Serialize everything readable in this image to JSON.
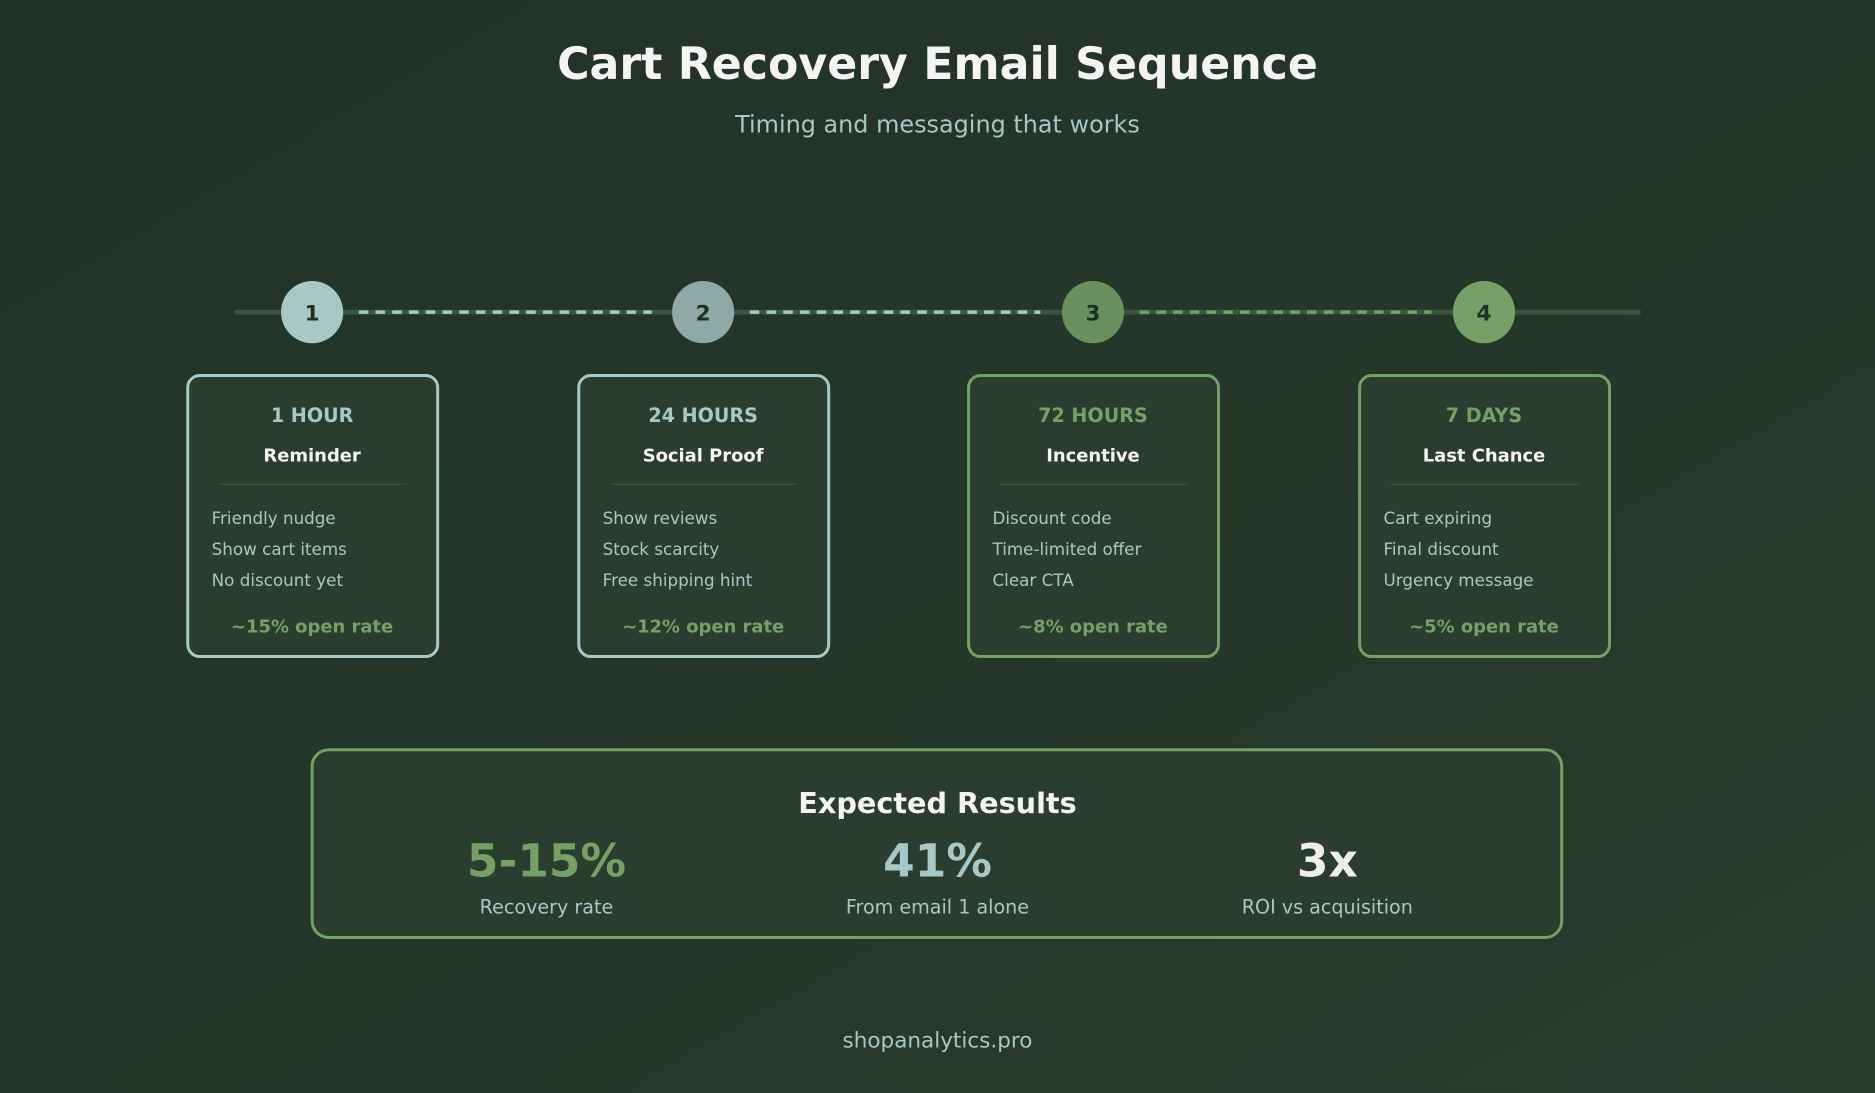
{
  "header": {
    "title": "Cart Recovery Email Sequence",
    "subtitle": "Timing and messaging that works"
  },
  "colors": {
    "background": "#24342a",
    "card_fill": "#2b3d2f",
    "accent_blue": "#a8c8c8",
    "accent_green": "#76a068",
    "text_white": "#f2f2f2"
  },
  "steps": [
    {
      "number": "1",
      "timing": "1 HOUR",
      "title": "Reminder",
      "items": [
        "Friendly nudge",
        "Show cart items",
        "No discount yet"
      ],
      "open_rate": "~15% open rate",
      "circle_color": "#a8c8c8",
      "accent": "#a8c8c8"
    },
    {
      "number": "2",
      "timing": "24 HOURS",
      "title": "Social Proof",
      "items": [
        "Show reviews",
        "Stock scarcity",
        "Free shipping hint"
      ],
      "open_rate": "~12% open rate",
      "circle_color": "#8fa8a8",
      "accent": "#a8c8c8"
    },
    {
      "number": "3",
      "timing": "72 HOURS",
      "title": "Incentive",
      "items": [
        "Discount code",
        "Time-limited offer",
        "Clear CTA"
      ],
      "open_rate": "~8% open rate",
      "circle_color": "#6a8f5e",
      "accent": "#76a068"
    },
    {
      "number": "4",
      "timing": "7 DAYS",
      "title": "Last Chance",
      "items": [
        "Cart expiring",
        "Final discount",
        "Urgency message"
      ],
      "open_rate": "~5% open rate",
      "circle_color": "#76a068",
      "accent": "#76a068"
    }
  ],
  "results": {
    "title": "Expected Results",
    "stats": [
      {
        "value": "5-15%",
        "label": "Recovery rate",
        "color": "#76a068"
      },
      {
        "value": "41%",
        "label": "From email 1 alone",
        "color": "#a8c8c8"
      },
      {
        "value": "3x",
        "label": "ROI vs acquisition",
        "color": "#eeeeee"
      }
    ]
  },
  "footer": {
    "text": "shopanalytics.pro"
  }
}
